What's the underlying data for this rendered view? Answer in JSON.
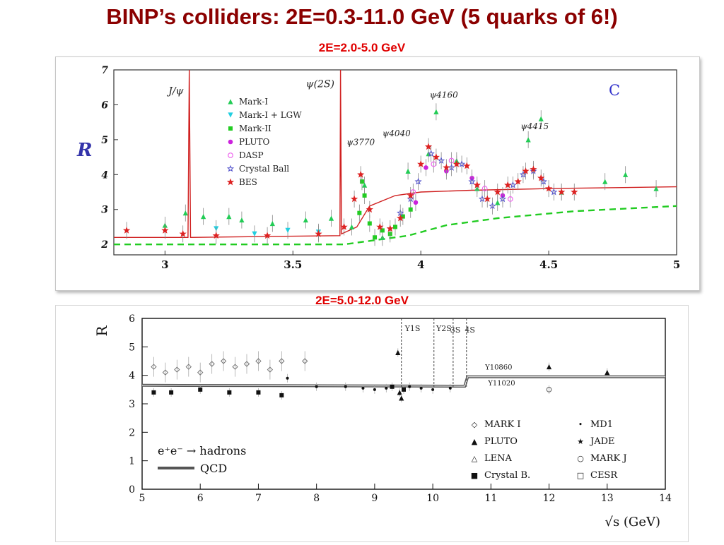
{
  "slide": {
    "title": "BINP’s colliders:  2E=0.3-11.0 GeV  (5 quarks of 6!)",
    "subtitle_top": "2E=2.0-5.0 GeV",
    "subtitle_bottom": "2E=5.0-12.0 GeV"
  },
  "colors": {
    "title": "#8b0000",
    "subtitle": "#e00000",
    "fit_line": "#d02020",
    "qcd_dash": "#22cc22"
  },
  "chart_data": [
    {
      "type": "scatter",
      "ylabel": "R",
      "corner_label": "C",
      "xlim": [
        2.8,
        5.0
      ],
      "ylim": [
        1.7,
        7.0
      ],
      "xticks": [
        "3",
        "3.5",
        "4",
        "4.5",
        "5"
      ],
      "yticks": [
        "2",
        "3",
        "4",
        "5",
        "6",
        "7"
      ],
      "grid": false,
      "legend_position": "top-left",
      "resonance_labels": [
        "J/ψ",
        "ψ(2S)",
        "ψ3770",
        "ψ4040",
        "ψ4160",
        "ψ4415"
      ],
      "series": [
        {
          "name": "Mark-I",
          "marker": "triangle-up",
          "color": "#22cc55",
          "points": [
            [
              3.0,
              2.55
            ],
            [
              3.08,
              2.9
            ],
            [
              3.15,
              2.8
            ],
            [
              3.25,
              2.8
            ],
            [
              3.3,
              2.7
            ],
            [
              3.42,
              2.6
            ],
            [
              3.55,
              2.7
            ],
            [
              3.65,
              2.75
            ],
            [
              3.73,
              2.5
            ],
            [
              3.78,
              3.7
            ],
            [
              3.85,
              2.2
            ],
            [
              3.95,
              4.1
            ],
            [
              4.03,
              4.6
            ],
            [
              4.06,
              5.8
            ],
            [
              4.14,
              4.4
            ],
            [
              4.22,
              3.6
            ],
            [
              4.3,
              3.2
            ],
            [
              4.42,
              5.0
            ],
            [
              4.47,
              5.6
            ],
            [
              4.55,
              3.5
            ],
            [
              4.72,
              3.8
            ],
            [
              4.8,
              4.0
            ],
            [
              4.92,
              3.6
            ]
          ]
        },
        {
          "name": "Mark-I + LGW",
          "marker": "triangle-down",
          "color": "#22cfe0",
          "points": [
            [
              3.2,
              2.45
            ],
            [
              3.35,
              2.3
            ],
            [
              3.48,
              2.4
            ],
            [
              3.6,
              2.35
            ]
          ]
        },
        {
          "name": "Mark-II",
          "marker": "square",
          "color": "#22cc22",
          "points": [
            [
              3.76,
              2.9
            ],
            [
              3.77,
              3.8
            ],
            [
              3.78,
              3.4
            ],
            [
              3.8,
              2.6
            ],
            [
              3.82,
              2.2
            ],
            [
              3.85,
              2.4
            ],
            [
              3.88,
              2.3
            ],
            [
              3.9,
              2.5
            ],
            [
              3.93,
              2.8
            ],
            [
              3.96,
              3.0
            ]
          ]
        },
        {
          "name": "PLUTO",
          "marker": "circle",
          "color": "#cc22dd",
          "points": [
            [
              3.98,
              3.2
            ],
            [
              4.02,
              4.2
            ],
            [
              4.1,
              4.1
            ],
            [
              4.2,
              3.9
            ],
            [
              4.32,
              3.4
            ]
          ]
        },
        {
          "name": "DASP",
          "marker": "open-circle",
          "color": "#ee66ee",
          "points": [
            [
              3.97,
              3.5
            ],
            [
              4.05,
              4.3
            ],
            [
              4.12,
              4.4
            ],
            [
              4.25,
              3.6
            ],
            [
              4.35,
              3.3
            ]
          ]
        },
        {
          "name": "Crystal Ball",
          "marker": "open-star",
          "color": "#5555cc",
          "points": [
            [
              3.92,
              2.9
            ],
            [
              3.96,
              3.3
            ],
            [
              3.99,
              3.8
            ],
            [
              4.04,
              4.6
            ],
            [
              4.08,
              4.4
            ],
            [
              4.12,
              4.2
            ],
            [
              4.16,
              4.3
            ],
            [
              4.2,
              3.8
            ],
            [
              4.24,
              3.3
            ],
            [
              4.28,
              3.1
            ],
            [
              4.32,
              3.3
            ],
            [
              4.36,
              3.7
            ],
            [
              4.4,
              4.0
            ],
            [
              4.44,
              4.1
            ],
            [
              4.48,
              3.8
            ],
            [
              4.52,
              3.5
            ]
          ]
        },
        {
          "name": "BES",
          "marker": "star",
          "color": "#dd2222",
          "points": [
            [
              2.85,
              2.4
            ],
            [
              3.0,
              2.4
            ],
            [
              3.07,
              2.3
            ],
            [
              3.2,
              2.25
            ],
            [
              3.4,
              2.25
            ],
            [
              3.6,
              2.3
            ],
            [
              3.7,
              2.5
            ],
            [
              3.74,
              3.3
            ],
            [
              3.765,
              4.0
            ],
            [
              3.8,
              3.0
            ],
            [
              3.84,
              2.5
            ],
            [
              3.88,
              2.45
            ],
            [
              3.92,
              2.75
            ],
            [
              3.96,
              3.4
            ],
            [
              4.0,
              4.3
            ],
            [
              4.03,
              4.8
            ],
            [
              4.06,
              4.5
            ],
            [
              4.1,
              4.2
            ],
            [
              4.14,
              4.3
            ],
            [
              4.18,
              4.25
            ],
            [
              4.22,
              3.7
            ],
            [
              4.26,
              3.3
            ],
            [
              4.3,
              3.5
            ],
            [
              4.34,
              3.7
            ],
            [
              4.38,
              3.8
            ],
            [
              4.41,
              4.1
            ],
            [
              4.44,
              4.15
            ],
            [
              4.47,
              3.9
            ],
            [
              4.5,
              3.6
            ],
            [
              4.55,
              3.5
            ],
            [
              4.6,
              3.5
            ]
          ]
        }
      ],
      "fit_curve": [
        [
          2.8,
          2.2
        ],
        [
          3.0,
          2.2
        ],
        [
          3.09,
          2.2
        ],
        [
          3.095,
          7.0
        ],
        [
          3.1,
          2.2
        ],
        [
          3.684,
          2.25
        ],
        [
          3.686,
          7.0
        ],
        [
          3.69,
          2.3
        ],
        [
          3.75,
          2.5
        ],
        [
          3.8,
          3.1
        ],
        [
          3.9,
          3.4
        ],
        [
          4.0,
          3.5
        ],
        [
          4.2,
          3.55
        ],
        [
          4.5,
          3.6
        ],
        [
          5.0,
          3.65
        ]
      ],
      "qcd_curve": [
        [
          2.8,
          2.0
        ],
        [
          3.7,
          2.0
        ],
        [
          3.95,
          2.25
        ],
        [
          4.1,
          2.55
        ],
        [
          4.3,
          2.75
        ],
        [
          4.6,
          2.95
        ],
        [
          5.0,
          3.1
        ]
      ]
    },
    {
      "type": "scatter",
      "ylabel": "R",
      "xlabel": "√s  (GeV)",
      "xlim": [
        5,
        14
      ],
      "ylim": [
        0,
        6
      ],
      "xticks": [
        "5",
        "6",
        "7",
        "8",
        "9",
        "10",
        "11",
        "12",
        "13",
        "14"
      ],
      "yticks": [
        "0",
        "1",
        "2",
        "3",
        "4",
        "5",
        "6"
      ],
      "grid": false,
      "legend_position": "bottom-right",
      "process_label": "e⁺e⁻ → hadrons",
      "qcd_label": "QCD",
      "resonance_labels": [
        "Υ1S",
        "Υ2S",
        "3S",
        "4S",
        "Υ10860",
        "Υ11020"
      ],
      "legend": [
        {
          "name": "MARK I",
          "symbol": "◇"
        },
        {
          "name": "PLUTO",
          "symbol": "▲"
        },
        {
          "name": "LENA",
          "symbol": "△"
        },
        {
          "name": "Crystal B.",
          "symbol": "■"
        },
        {
          "name": "MD1",
          "symbol": "•"
        },
        {
          "name": "JADE",
          "symbol": "★"
        },
        {
          "name": "MARK J",
          "symbol": "○"
        },
        {
          "name": "CESR",
          "symbol": "□"
        }
      ],
      "series": [
        {
          "name": "MARK I",
          "marker": "open-diamond",
          "points": [
            [
              5.2,
              4.3
            ],
            [
              5.4,
              4.1
            ],
            [
              5.6,
              4.2
            ],
            [
              5.8,
              4.3
            ],
            [
              6.0,
              4.1
            ],
            [
              6.2,
              4.4
            ],
            [
              6.4,
              4.5
            ],
            [
              6.6,
              4.3
            ],
            [
              6.8,
              4.4
            ],
            [
              7.0,
              4.5
            ],
            [
              7.2,
              4.2
            ],
            [
              7.4,
              4.5
            ],
            [
              7.8,
              4.5
            ]
          ]
        },
        {
          "name": "PLUTO",
          "marker": "triangle-up",
          "points": [
            [
              9.4,
              4.8
            ],
            [
              9.43,
              3.4
            ],
            [
              9.46,
              3.2
            ],
            [
              12.0,
              4.3
            ],
            [
              13.0,
              4.1
            ]
          ]
        },
        {
          "name": "Crystal B.",
          "marker": "square",
          "points": [
            [
              5.2,
              3.4
            ],
            [
              5.5,
              3.4
            ],
            [
              6.0,
              3.5
            ],
            [
              6.5,
              3.4
            ],
            [
              7.0,
              3.4
            ],
            [
              7.4,
              3.3
            ],
            [
              9.3,
              3.6
            ],
            [
              9.5,
              3.5
            ]
          ]
        },
        {
          "name": "MD1",
          "marker": "dot",
          "points": [
            [
              7.5,
              3.9
            ],
            [
              8.0,
              3.6
            ],
            [
              8.5,
              3.6
            ],
            [
              8.8,
              3.55
            ],
            [
              9.0,
              3.5
            ],
            [
              9.2,
              3.55
            ],
            [
              9.6,
              3.6
            ],
            [
              9.8,
              3.55
            ],
            [
              10.0,
              3.5
            ],
            [
              10.3,
              3.55
            ]
          ]
        },
        {
          "name": "MARK J",
          "marker": "open-circle",
          "points": [
            [
              12.0,
              3.5
            ]
          ]
        }
      ],
      "qcd_curve": [
        [
          5.0,
          3.65
        ],
        [
          10.55,
          3.62
        ],
        [
          10.6,
          3.95
        ],
        [
          14.0,
          3.95
        ]
      ]
    }
  ]
}
